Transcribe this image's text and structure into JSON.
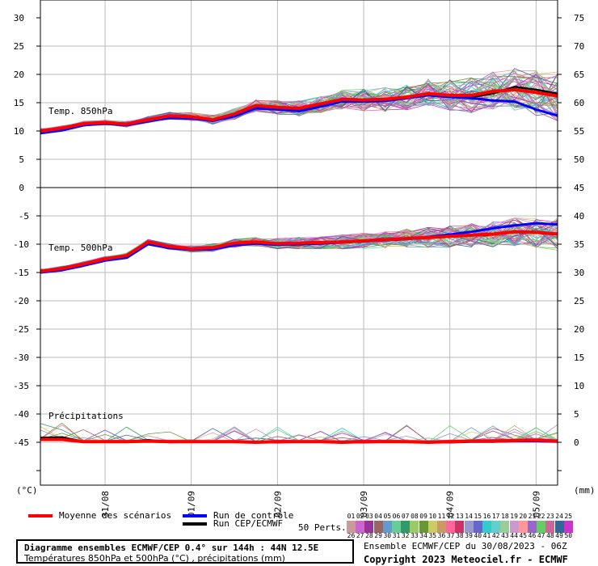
{
  "chart_data": {
    "type": "line",
    "title": "Diagramme ensembles ECMWF/CEP 0.4° sur 144h : 44N 12.5E",
    "subtitle": "Températures 850hPa et 500hPa (°C) , précipitations (mm)",
    "run_info": "Ensemble ECMWF/CEP du 30/08/2023 - 06Z",
    "copyright": "Copyright 2023 Meteociel.fr - ECMWF",
    "left_axis_unit": "(°C)",
    "right_axis_unit": "(mm)",
    "x_ticks": [
      "31/08",
      "01/09",
      "02/09",
      "03/09",
      "04/09",
      "05/09"
    ],
    "left_ticks_t850": [
      "30",
      "25",
      "20",
      "15",
      "10",
      "5",
      "0"
    ],
    "left_ticks_t500": [
      "-5",
      "-10",
      "-15",
      "-20",
      "-25",
      "-30",
      "-35",
      "-40",
      "-45"
    ],
    "right_ticks_top": [
      "75",
      "70",
      "65",
      "60",
      "55",
      "50",
      "45"
    ],
    "right_ticks_bottom": [
      "40",
      "35",
      "30",
      "25",
      "20",
      "15",
      "10",
      "5",
      "0"
    ],
    "panel_labels": [
      "Temp. 850hPa",
      "Temp. 500hPa",
      "Précipitations"
    ],
    "grid": true,
    "x_hours": [
      0,
      6,
      12,
      18,
      24,
      30,
      36,
      42,
      48,
      54,
      60,
      66,
      72,
      78,
      84,
      90,
      96,
      102,
      108,
      114,
      120,
      126,
      132,
      138,
      144
    ],
    "t850": {
      "ylim": [
        0,
        30
      ],
      "series": [
        {
          "name": "Moyenne des scénarios",
          "color": "#ff0000",
          "values": [
            10.0,
            10.5,
            11.3,
            11.5,
            11.2,
            12.0,
            12.7,
            12.5,
            12.0,
            13.0,
            14.5,
            14.2,
            14.0,
            14.8,
            15.6,
            15.5,
            15.6,
            16.0,
            16.6,
            16.3,
            16.3,
            17.0,
            17.3,
            16.8,
            16.2
          ]
        },
        {
          "name": "Run de contrôle",
          "color": "#0000ff",
          "values": [
            9.6,
            10.1,
            11.0,
            11.3,
            11.0,
            11.7,
            12.3,
            12.2,
            11.8,
            12.6,
            14.0,
            13.8,
            13.5,
            14.3,
            15.2,
            15.2,
            15.3,
            15.8,
            16.3,
            16.0,
            15.8,
            15.4,
            15.2,
            13.8,
            12.7
          ]
        },
        {
          "name": "Run CEP/ECMWF",
          "color": "#000000",
          "values": [
            9.8,
            10.2,
            11.1,
            11.4,
            11.1,
            11.8,
            12.4,
            12.3,
            11.9,
            12.8,
            14.2,
            14.0,
            13.8,
            14.5,
            15.4,
            15.3,
            15.4,
            15.9,
            16.4,
            16.2,
            16.0,
            16.6,
            17.8,
            17.3,
            16.6
          ]
        }
      ]
    },
    "t500": {
      "ylim": [
        -45,
        0
      ],
      "series": [
        {
          "name": "Moyenne des scénarios",
          "color": "#ff0000",
          "values": [
            -14.8,
            -14.3,
            -13.5,
            -12.6,
            -12.0,
            -9.6,
            -10.4,
            -10.8,
            -10.6,
            -9.8,
            -9.6,
            -9.9,
            -9.8,
            -9.7,
            -9.6,
            -9.4,
            -9.2,
            -9.0,
            -8.8,
            -8.6,
            -8.4,
            -8.2,
            -7.8,
            -7.9,
            -8.2
          ]
        },
        {
          "name": "Run de contrôle",
          "color": "#0000ff",
          "values": [
            -15.0,
            -14.6,
            -13.8,
            -12.9,
            -12.4,
            -10.0,
            -10.7,
            -11.0,
            -10.9,
            -10.2,
            -9.9,
            -10.1,
            -10.0,
            -9.9,
            -9.7,
            -9.5,
            -9.3,
            -9.1,
            -8.7,
            -8.3,
            -7.8,
            -7.2,
            -6.7,
            -6.3,
            -6.5
          ]
        },
        {
          "name": "Run CEP/ECMWF",
          "color": "#000000",
          "values": [
            -14.9,
            -14.4,
            -13.6,
            -12.7,
            -12.1,
            -9.8,
            -10.5,
            -10.9,
            -10.7,
            -9.9,
            -9.7,
            -10.0,
            -9.9,
            -9.8,
            -9.7,
            -9.5,
            -9.3,
            -9.1,
            -8.9,
            -8.7,
            -8.5,
            -8.3,
            -7.9,
            -8.0,
            -8.3
          ]
        }
      ]
    },
    "precip": {
      "ylim_right": [
        0,
        45
      ],
      "series": [
        {
          "name": "Moyenne des scénarios",
          "color": "#ff0000",
          "values": [
            0.5,
            0.5,
            0.1,
            0.1,
            0.1,
            0.2,
            0.1,
            0.1,
            0.1,
            0.1,
            0.0,
            0.1,
            0.1,
            0.1,
            0.0,
            0.1,
            0.1,
            0.1,
            0.0,
            0.1,
            0.2,
            0.2,
            0.3,
            0.4,
            0.2
          ]
        },
        {
          "name": "Run de contrôle",
          "color": "#0000ff",
          "values": [
            0.6,
            0.5,
            0.1,
            0.1,
            0.1,
            0.3,
            0.1,
            0.1,
            0.1,
            0.1,
            0.0,
            0.0,
            0.1,
            0.1,
            0.0,
            0.0,
            0.1,
            0.1,
            0.0,
            0.0,
            0.1,
            0.1,
            0.2,
            0.2,
            0.1
          ]
        },
        {
          "name": "Run CEP/ECMWF",
          "color": "#000000",
          "values": [
            0.8,
            0.9,
            0.1,
            0.1,
            0.1,
            0.4,
            0.0,
            0.1,
            0.1,
            0.1,
            0.0,
            0.1,
            0.1,
            0.2,
            0.0,
            0.1,
            0.1,
            0.1,
            0.0,
            0.1,
            0.1,
            0.1,
            0.2,
            0.3,
            0.1
          ]
        }
      ]
    },
    "legend": [
      {
        "label": "Moyenne des scénarios",
        "color": "#ff0000"
      },
      {
        "label": "Run de contrôle",
        "color": "#0000ff"
      },
      {
        "label": "Run CEP/ECMWF",
        "color": "#000000"
      }
    ],
    "perturbations_label": "50 Perts.",
    "perturbation_ids": [
      "01",
      "02",
      "03",
      "04",
      "05",
      "06",
      "07",
      "08",
      "09",
      "10",
      "11",
      "12",
      "13",
      "14",
      "15",
      "16",
      "17",
      "18",
      "19",
      "20",
      "21",
      "22",
      "23",
      "24",
      "25",
      "26",
      "27",
      "28",
      "29",
      "30",
      "31",
      "32",
      "33",
      "34",
      "35",
      "36",
      "37",
      "38",
      "39",
      "40",
      "41",
      "42",
      "43",
      "44",
      "45",
      "46",
      "47",
      "48",
      "49",
      "50"
    ],
    "perturbation_colors": [
      "#cc9999",
      "#cc66cc",
      "#993399",
      "#996666",
      "#6699cc",
      "#66cc99",
      "#339966",
      "#99cc66",
      "#669933",
      "#cccc66",
      "#cc9966",
      "#ff6699",
      "#cc3366",
      "#9999cc",
      "#6666cc",
      "#33cccc",
      "#66cccc",
      "#99cc99",
      "#cc99cc",
      "#ff9999",
      "#9966cc",
      "#66cc66",
      "#cc6699",
      "#336699",
      "#cc33cc",
      "#cc9999",
      "#cc66cc",
      "#993399",
      "#996666",
      "#6699cc",
      "#66cc99",
      "#339966",
      "#99cc66",
      "#669933",
      "#cccc66",
      "#cc9966",
      "#ff6699",
      "#cc3366",
      "#9999cc",
      "#6666cc",
      "#33cccc",
      "#66cccc",
      "#99cc99",
      "#cc99cc",
      "#ff9999",
      "#9966cc",
      "#66cc66",
      "#cc6699",
      "#336699",
      "#cc33cc"
    ]
  }
}
